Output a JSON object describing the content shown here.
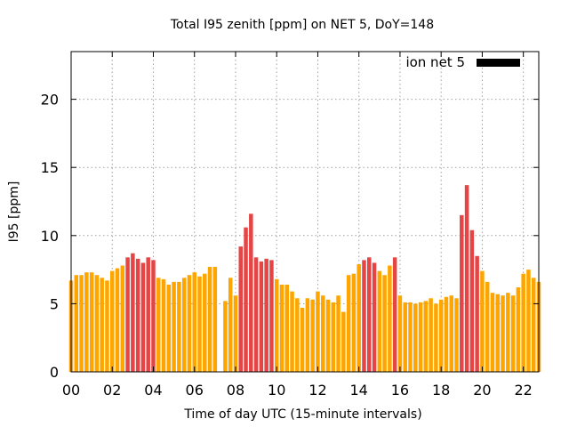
{
  "chart_data": {
    "type": "bar",
    "title": "Total I95 zenith [ppm] on NET 5, DoY=148",
    "xlabel": "Time of day UTC (15-minute intervals)",
    "ylabel": "I95 [ppm]",
    "ylim": [
      0,
      23.5
    ],
    "yticks": [
      0,
      5,
      10,
      15,
      20
    ],
    "xlim": [
      0,
      22.75
    ],
    "xticks": [
      0,
      2,
      4,
      6,
      8,
      10,
      12,
      14,
      16,
      18,
      20,
      22
    ],
    "xtick_labels": [
      "00",
      "02",
      "04",
      "06",
      "08",
      "10",
      "12",
      "14",
      "16",
      "18",
      "20",
      "22"
    ],
    "grid": true,
    "legend": {
      "position": "top-right",
      "entries": [
        {
          "label": "ion net 5",
          "color": "#000000"
        }
      ]
    },
    "colors": {
      "normal": "#ffa500",
      "high": "#e64545"
    },
    "bar_interval_hours": 0.25,
    "series": [
      {
        "name": "ion net 5",
        "x_start": 0,
        "values": [
          6.7,
          7.1,
          7.1,
          7.3,
          7.3,
          7.1,
          6.9,
          6.7,
          7.4,
          7.6,
          7.8,
          8.4,
          8.7,
          8.3,
          8.0,
          8.4,
          8.2,
          6.9,
          6.8,
          6.4,
          6.6,
          6.6,
          6.9,
          7.1,
          7.3,
          7.0,
          7.2,
          7.7,
          7.7,
          null,
          5.2,
          6.9,
          5.6,
          9.2,
          10.6,
          11.6,
          8.4,
          8.1,
          8.3,
          8.2,
          6.8,
          6.4,
          6.4,
          5.9,
          5.4,
          4.7,
          5.4,
          5.3,
          5.9,
          5.6,
          5.3,
          5.1,
          5.6,
          4.4,
          7.1,
          7.2,
          7.9,
          8.2,
          8.4,
          8.0,
          7.4,
          7.1,
          7.8,
          8.4,
          5.6,
          5.1,
          5.1,
          5.0,
          5.1,
          5.2,
          5.4,
          5.0,
          5.3,
          5.5,
          5.6,
          5.4,
          11.5,
          13.7,
          10.4,
          8.5,
          7.4,
          6.6,
          5.8,
          5.7,
          5.6,
          5.8,
          5.6,
          6.2,
          7.2,
          7.5,
          6.9,
          6.6
        ],
        "flags": [
          "n",
          "n",
          "n",
          "n",
          "n",
          "n",
          "n",
          "n",
          "n",
          "n",
          "n",
          "h",
          "h",
          "h",
          "h",
          "h",
          "h",
          "n",
          "n",
          "n",
          "n",
          "n",
          "n",
          "n",
          "n",
          "n",
          "n",
          "n",
          "n",
          "n",
          "n",
          "n",
          "n",
          "h",
          "h",
          "h",
          "h",
          "h",
          "h",
          "h",
          "n",
          "n",
          "n",
          "n",
          "n",
          "n",
          "n",
          "n",
          "n",
          "n",
          "n",
          "n",
          "n",
          "n",
          "n",
          "n",
          "n",
          "h",
          "h",
          "h",
          "n",
          "n",
          "n",
          "h",
          "n",
          "n",
          "n",
          "n",
          "n",
          "n",
          "n",
          "n",
          "n",
          "n",
          "n",
          "n",
          "h",
          "h",
          "h",
          "h",
          "n",
          "n",
          "n",
          "n",
          "n",
          "n",
          "n",
          "n",
          "n",
          "n",
          "n",
          "n"
        ]
      }
    ]
  }
}
